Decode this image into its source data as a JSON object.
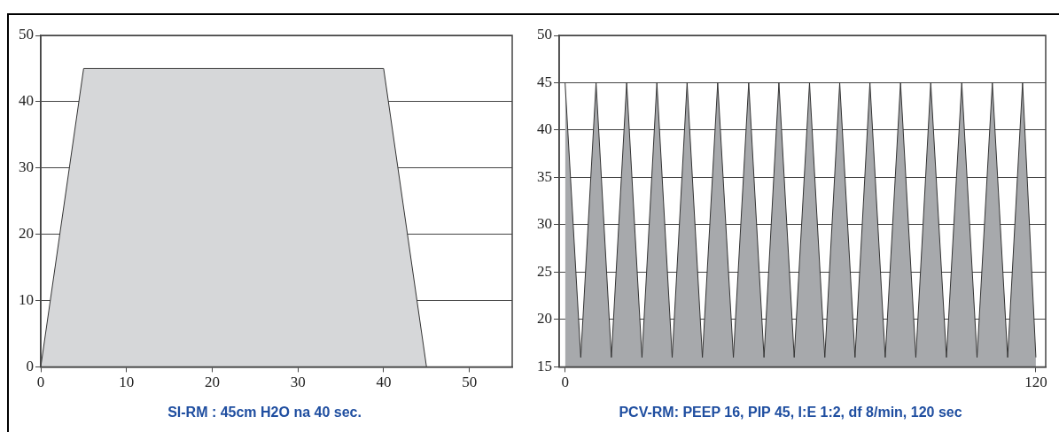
{
  "chart_data": [
    {
      "type": "area",
      "title": "SI-RM : 45cm H2O na 40 sec.",
      "x": [
        0,
        5,
        40,
        45
      ],
      "series": [
        {
          "color": "#d6d7d9",
          "values": [
            0,
            45,
            45,
            0
          ]
        }
      ],
      "xlim": [
        0,
        55
      ],
      "xticks": [
        0,
        10,
        20,
        30,
        40,
        50
      ],
      "ylim": [
        0,
        50
      ],
      "yticks": [
        0,
        10,
        20,
        30,
        40,
        50
      ],
      "grid": "y"
    },
    {
      "type": "area",
      "title": "PCV-RM: PEEP 16, PIP 45, I:E 1:2, df 8/min, 120 sec",
      "x": [
        0,
        4.0,
        7.9,
        11.8,
        15.7,
        19.6,
        23.4,
        27.3,
        31.1,
        35.0,
        38.9,
        42.9,
        46.8,
        50.7,
        54.5,
        58.4,
        62.3,
        66.2,
        70.0,
        73.9,
        77.7,
        81.6,
        85.5,
        89.4,
        93.2,
        97.2,
        101.1,
        105.0,
        108.9,
        112.8,
        116.6,
        120
      ],
      "series": [
        {
          "color": "#a7a9ac",
          "values": [
            45,
            16,
            45,
            16,
            45,
            16,
            45,
            16,
            45,
            16,
            45,
            16,
            45,
            16,
            45,
            16,
            45,
            16,
            45,
            16,
            45,
            16,
            45,
            16,
            45,
            16,
            45,
            16,
            45,
            16,
            45,
            16
          ]
        }
      ],
      "xlim": [
        -1.5,
        122.5
      ],
      "xticks": [
        0,
        120
      ],
      "ylim": [
        15,
        50
      ],
      "yticks": [
        15,
        20,
        25,
        30,
        35,
        40,
        45,
        50
      ],
      "grid": "y"
    }
  ]
}
